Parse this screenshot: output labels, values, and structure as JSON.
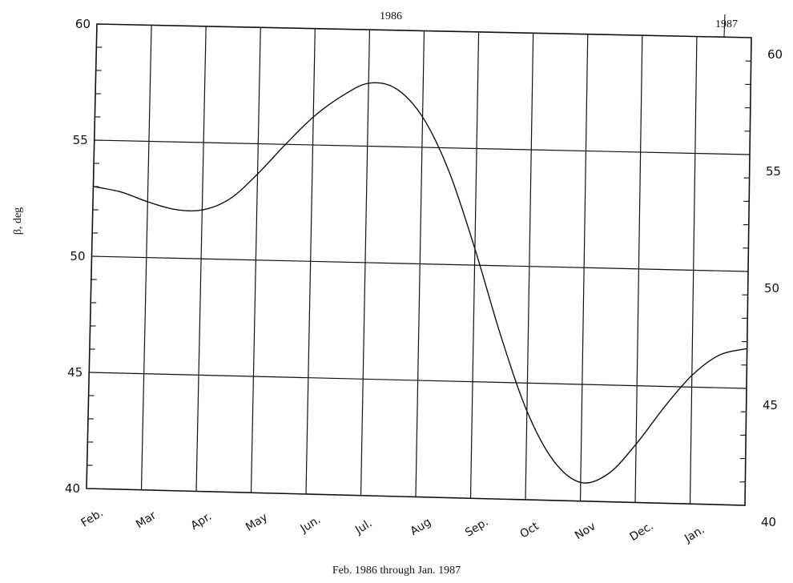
{
  "chart_data": {
    "type": "line",
    "title": "",
    "xlabel": "Feb. 1986 through Jan. 1987",
    "ylabel": "β, deg",
    "year_labels": [
      "1986",
      "1987"
    ],
    "categories": [
      "Feb.",
      "Mar",
      "Apr.",
      "May",
      "Jun.",
      "Jul.",
      "Aug",
      "Sep.",
      "Oct",
      "Nov",
      "Dec.",
      "Jan."
    ],
    "ylim": [
      40,
      60
    ],
    "yticks_left": [
      "60",
      "55",
      "50",
      "45",
      "40"
    ],
    "yticks_right": [
      "60",
      "55",
      "50",
      "45",
      "40"
    ],
    "grid": true,
    "series": [
      {
        "x": [
          0,
          0.5,
          1.0,
          1.5,
          2.0,
          2.5,
          3.0,
          3.5,
          4.0,
          4.5,
          5.0,
          5.5,
          6.0,
          6.5,
          7.0,
          7.5,
          8.0,
          8.5,
          9.0,
          9.5,
          10.0,
          10.5,
          11.0,
          11.5,
          12.0
        ],
        "y": [
          53.0,
          52.8,
          52.4,
          52.1,
          52.1,
          52.6,
          53.7,
          55.0,
          56.2,
          57.1,
          57.7,
          57.5,
          56.3,
          54.0,
          50.7,
          47.0,
          43.8,
          41.7,
          40.8,
          41.2,
          42.5,
          44.1,
          45.5,
          46.4,
          46.7
        ]
      }
    ]
  }
}
